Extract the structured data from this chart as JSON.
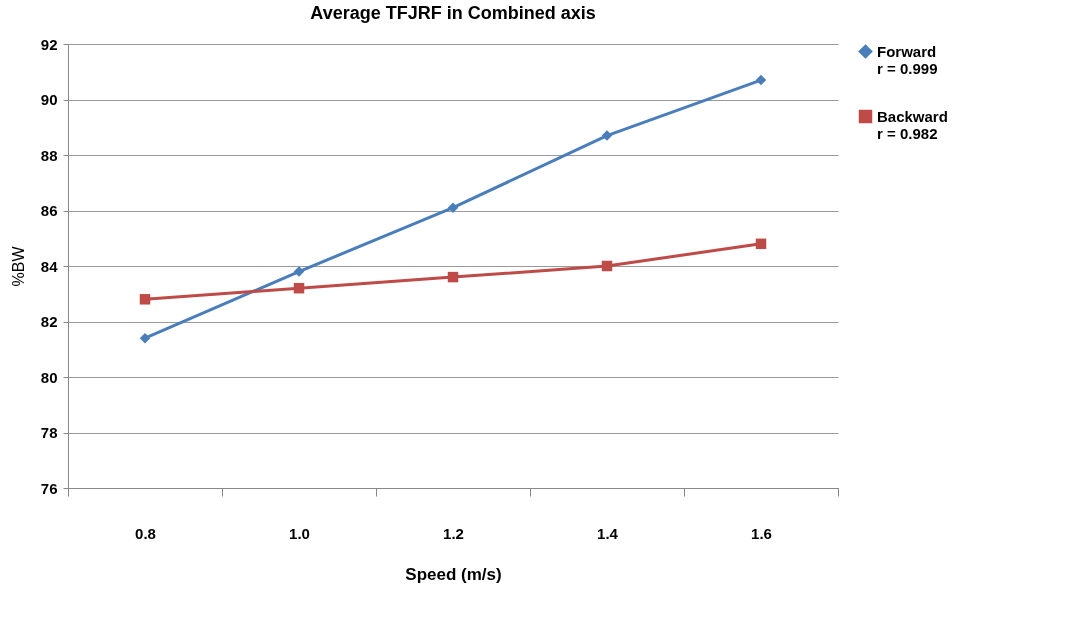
{
  "chart_data": {
    "type": "line",
    "title": "Average TFJRF in Combined axis",
    "xlabel": "Speed (m/s)",
    "ylabel": "%BW",
    "categories": [
      "0.8",
      "1.0",
      "1.2",
      "1.4",
      "1.6"
    ],
    "series": [
      {
        "name": "Forward\nr = 0.999",
        "color": "#4a7ebb",
        "marker": "diamond",
        "values": [
          81.4,
          83.8,
          86.1,
          88.7,
          90.7
        ]
      },
      {
        "name": "Backward\nr = 0.982",
        "color": "#be4b48",
        "marker": "square",
        "values": [
          82.8,
          83.2,
          83.6,
          84.0,
          84.8
        ]
      }
    ],
    "ylim": [
      76,
      92
    ],
    "yticks": [
      76,
      78,
      80,
      82,
      84,
      86,
      88,
      90,
      92
    ],
    "grid": "y",
    "legend": "right"
  }
}
